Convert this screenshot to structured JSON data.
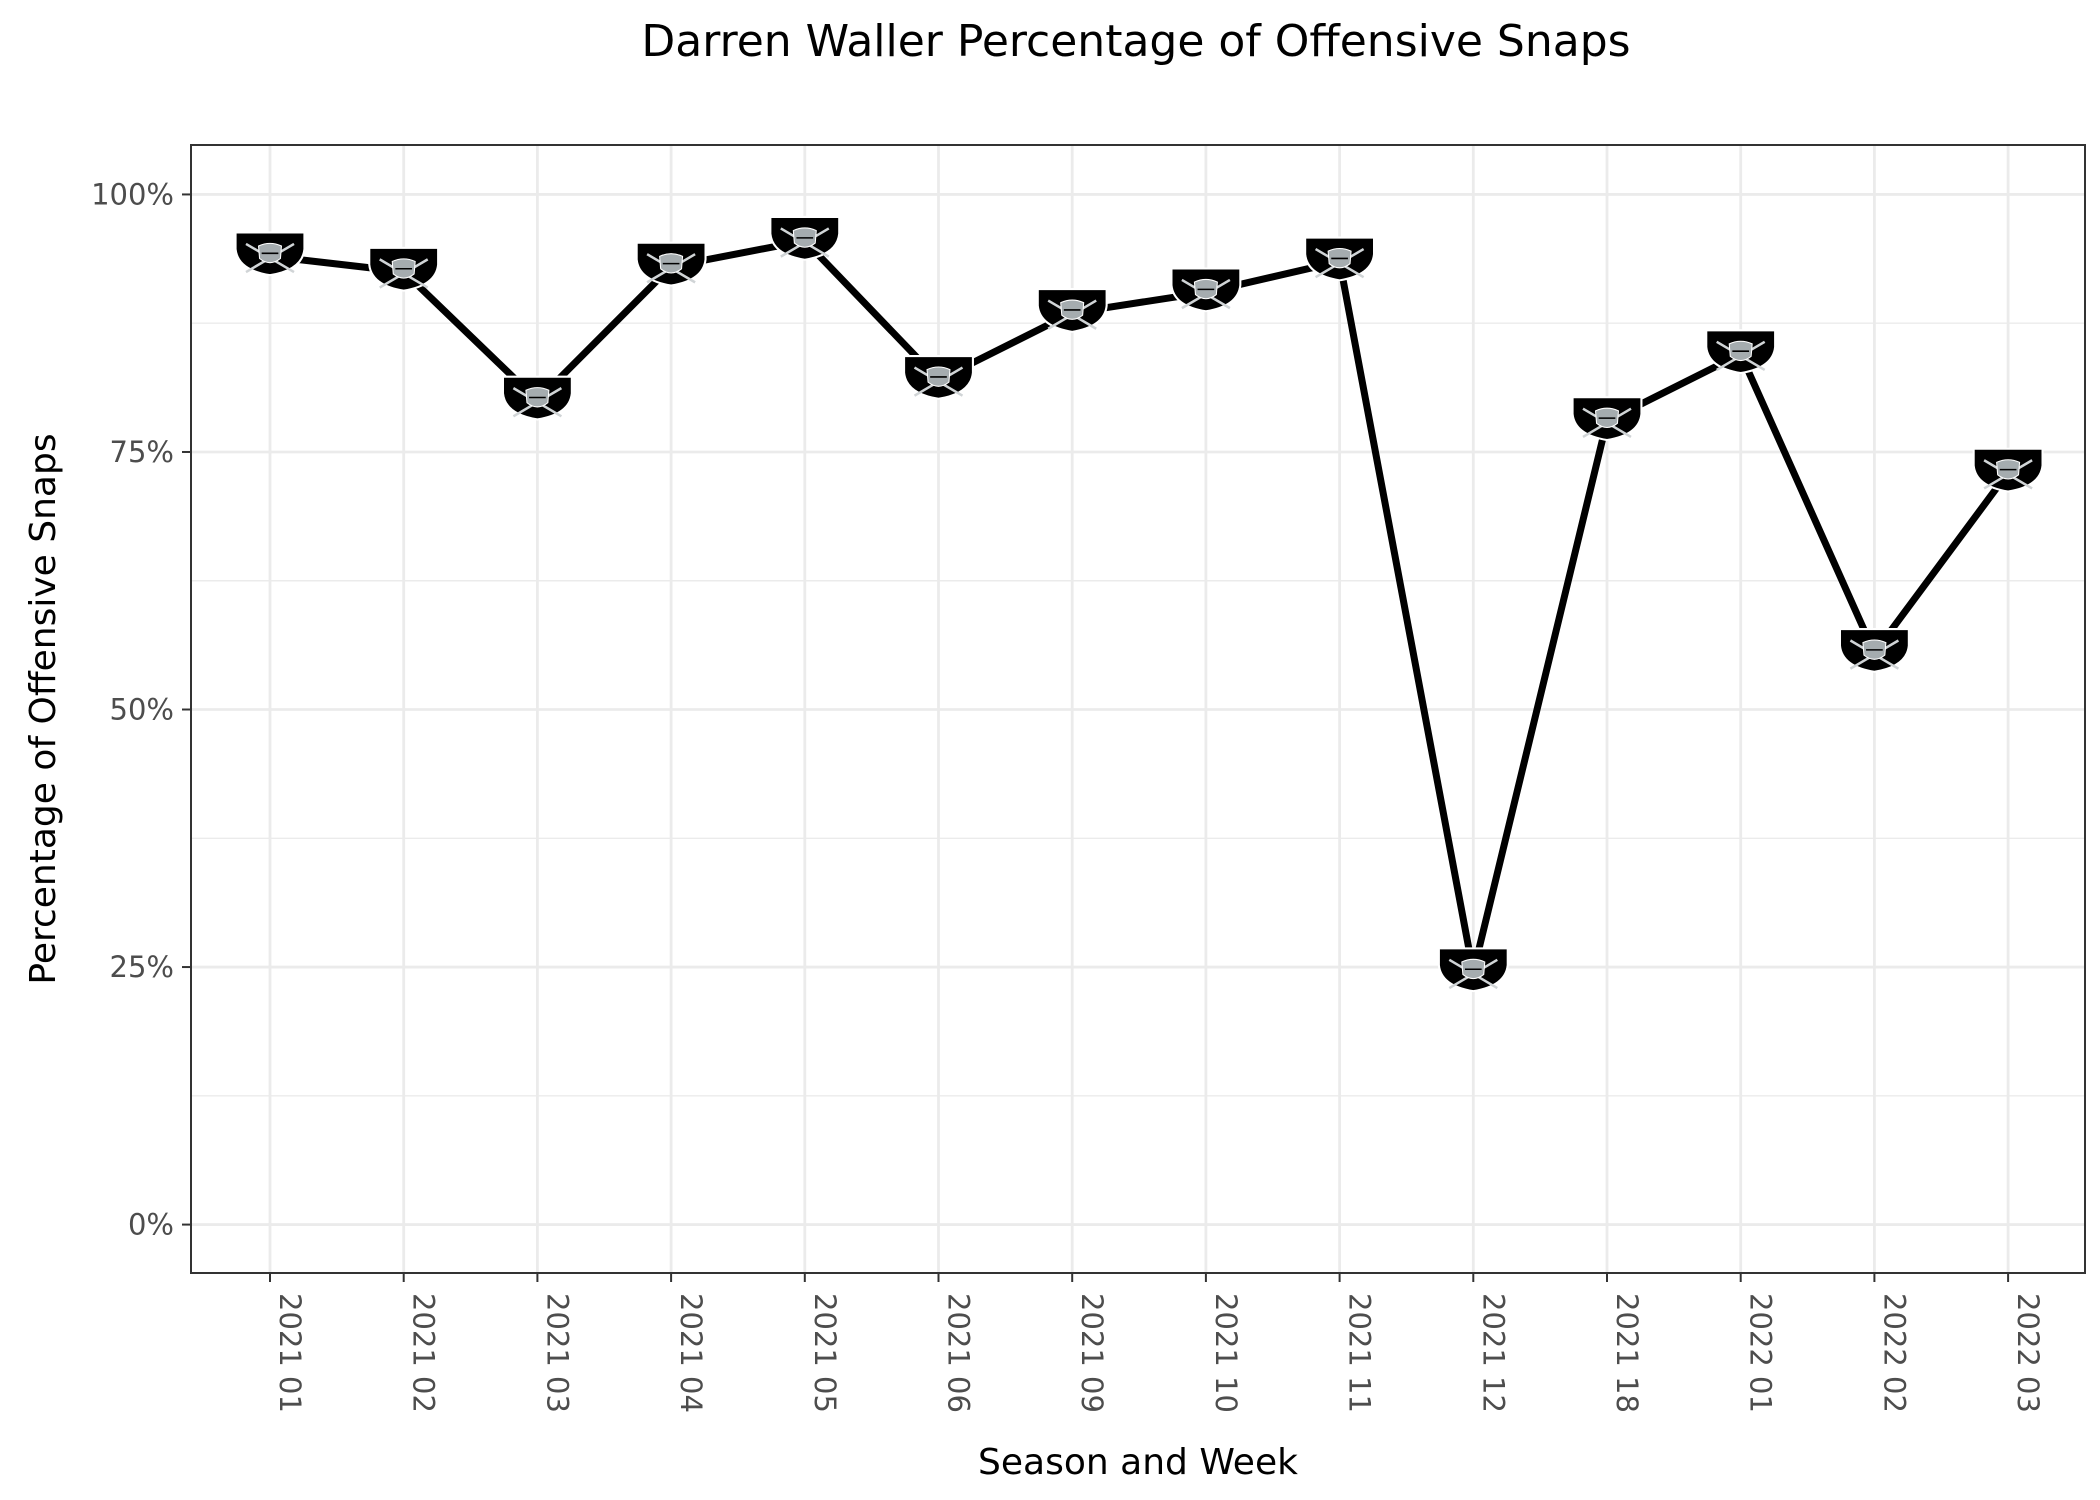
{
  "chart_data": {
    "type": "line",
    "title": "Darren Waller Percentage of Offensive Snaps",
    "xlabel": "Season and Week",
    "ylabel": "Percentage of Offensive Snaps",
    "categories": [
      "2021 01",
      "2021 02",
      "2021 03",
      "2021 04",
      "2021 05",
      "2021 06",
      "2021 09",
      "2021 10",
      "2021 11",
      "2021 12",
      "2021 18",
      "2022 01",
      "2022 02",
      "2022 03"
    ],
    "values": [
      94,
      92.5,
      80,
      93,
      95.5,
      82,
      88.5,
      90.5,
      93.5,
      24.5,
      78,
      84.5,
      55.5,
      73
    ],
    "ylim": [
      -4.7,
      104.8
    ],
    "yticks": [
      0,
      25,
      50,
      75,
      100
    ],
    "ytick_labels": [
      "0%",
      "25%",
      "50%",
      "75%",
      "100%"
    ],
    "grid": true,
    "marker": "raiders-shield-logo",
    "marker_text": "RAIDERS",
    "colors": {
      "line": "#000000",
      "marker": "#000000",
      "marker_accent": "#a5acaf"
    }
  }
}
